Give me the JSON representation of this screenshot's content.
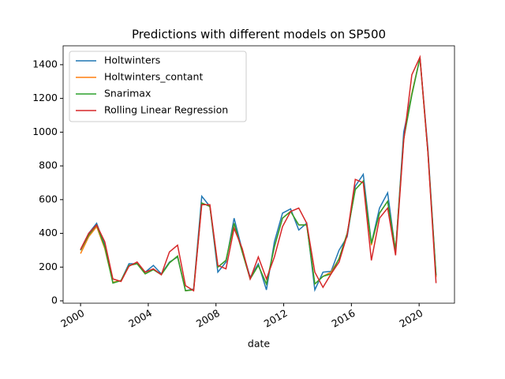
{
  "chart_data": {
    "type": "line",
    "title": "Predictions with different models on SP500",
    "x_label": "date",
    "x": [
      2000,
      2000.48,
      2000.95,
      2001.43,
      2001.91,
      2002.39,
      2002.86,
      2003.34,
      2003.82,
      2004.3,
      2004.77,
      2005.25,
      2005.73,
      2006.2,
      2006.68,
      2007.16,
      2007.64,
      2008.11,
      2008.59,
      2009.07,
      2009.55,
      2010.02,
      2010.5,
      2010.98,
      2011.45,
      2011.93,
      2012.41,
      2012.89,
      2013.36,
      2013.84,
      2014.32,
      2014.8,
      2015.27,
      2015.75,
      2016.23,
      2016.7,
      2017.18,
      2017.66,
      2018.14,
      2018.61,
      2019.09,
      2019.57,
      2020.05,
      2020.52,
      2021.0
    ],
    "series": [
      {
        "name": "Holtwinters",
        "color": "#1f77b4",
        "values": [
          300,
          400,
          460,
          330,
          110,
          120,
          220,
          220,
          170,
          210,
          160,
          230,
          260,
          60,
          70,
          620,
          560,
          170,
          230,
          490,
          300,
          140,
          220,
          65,
          350,
          520,
          545,
          420,
          460,
          65,
          170,
          175,
          300,
          380,
          680,
          750,
          340,
          550,
          640,
          290,
          1000,
          1230,
          1440,
          900,
          150
        ]
      },
      {
        "name": "Holtwinters_contant",
        "color": "#ff7f0e",
        "values": [
          280,
          380,
          440,
          310,
          110,
          120,
          210,
          220,
          160,
          185,
          155,
          225,
          265,
          60,
          65,
          580,
          560,
          200,
          240,
          460,
          290,
          130,
          210,
          100,
          320,
          490,
          530,
          450,
          450,
          100,
          145,
          170,
          250,
          400,
          660,
          710,
          330,
          520,
          590,
          300,
          960,
          1230,
          1440,
          880,
          140
        ]
      },
      {
        "name": "Snarimax",
        "color": "#2ca02c",
        "values": [
          300,
          390,
          450,
          320,
          105,
          120,
          210,
          220,
          160,
          185,
          155,
          225,
          265,
          60,
          65,
          580,
          560,
          200,
          240,
          460,
          290,
          130,
          210,
          100,
          320,
          490,
          530,
          450,
          450,
          100,
          145,
          160,
          250,
          400,
          660,
          710,
          340,
          520,
          590,
          300,
          960,
          1220,
          1440,
          880,
          150
        ]
      },
      {
        "name": "Rolling Linear Regression",
        "color": "#d62728",
        "values": [
          305,
          400,
          450,
          350,
          130,
          115,
          205,
          230,
          170,
          190,
          155,
          290,
          330,
          90,
          60,
          570,
          570,
          210,
          190,
          430,
          310,
          130,
          260,
          130,
          260,
          440,
          530,
          550,
          460,
          170,
          80,
          160,
          230,
          390,
          720,
          700,
          240,
          490,
          550,
          270,
          950,
          1340,
          1445,
          880,
          105
        ]
      }
    ],
    "xlim": [
      1998.97,
      2022.09
    ],
    "xticks": [
      2000,
      2004,
      2008,
      2012,
      2016,
      2020
    ],
    "ylim": [
      -14,
      1512
    ],
    "yticks": [
      0,
      200,
      400,
      600,
      800,
      1000,
      1200,
      1400
    ],
    "legend": "upper left",
    "grid": false
  }
}
